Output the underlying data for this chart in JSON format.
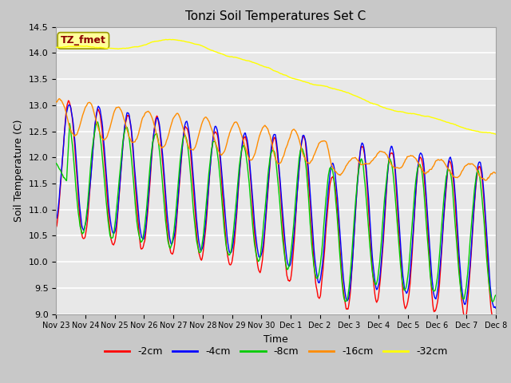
{
  "title": "Tonzi Soil Temperatures Set C",
  "xlabel": "Time",
  "ylabel": "Soil Temperature (C)",
  "ylim": [
    9.0,
    14.5
  ],
  "annotation_text": "TZ_fmet",
  "annotation_color": "#8B0000",
  "annotation_bg": "#FFFF99",
  "fig_bg": "#C8C8C8",
  "plot_bg": "#E8E8E8",
  "legend_entries": [
    "-2cm",
    "-4cm",
    "-8cm",
    "-16cm",
    "-32cm"
  ],
  "line_colors": [
    "#FF0000",
    "#0000FF",
    "#00CC00",
    "#FF8C00",
    "#FFFF00"
  ],
  "tick_labels": [
    "Nov 23",
    "Nov 24",
    "Nov 25",
    "Nov 26",
    "Nov 27",
    "Nov 28",
    "Nov 29",
    "Nov 30",
    "Dec 1",
    "Dec 2",
    "Dec 3",
    "Dec 4",
    "Dec 5",
    "Dec 6",
    "Dec 7",
    "Dec 8"
  ],
  "n_points": 721
}
